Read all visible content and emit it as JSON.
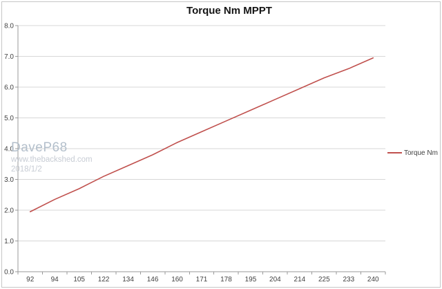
{
  "chart": {
    "title": "Torque Nm MPPT",
    "legend": {
      "label": "Torque Nm"
    },
    "watermark": {
      "line1": "DaveP68",
      "line2": "www.thebackshed.com",
      "line3": "2018/1/2"
    },
    "colors": {
      "series_line": "#C0504D",
      "gridline": "#d7d7d7",
      "axis_line": "#9a9a9a",
      "tick_label": "#3f3f3f",
      "title_text": "#141414",
      "watermark_primary": "#b3bfcb",
      "watermark_secondary": "#c7ccd4",
      "chart_border": "#c6c6c6",
      "background": "#ffffff"
    }
  },
  "chart_data": {
    "type": "line",
    "title": "Torque Nm MPPT",
    "categories": [
      "92",
      "94",
      "105",
      "122",
      "134",
      "146",
      "160",
      "171",
      "178",
      "195",
      "204",
      "214",
      "225",
      "233",
      "240"
    ],
    "series": [
      {
        "name": "Torque Nm",
        "color": "#C0504D",
        "values": [
          1.95,
          2.35,
          2.7,
          3.1,
          3.45,
          3.8,
          4.2,
          4.55,
          4.9,
          5.25,
          5.6,
          5.95,
          6.3,
          6.6,
          6.95
        ]
      }
    ],
    "xlabel": "",
    "ylabel": "",
    "ylim": [
      0,
      8
    ],
    "ytick_step": 1,
    "y_tick_labels": [
      "0.0",
      "1.0",
      "2.0",
      "3.0",
      "4.0",
      "5.0",
      "6.0",
      "7.0",
      "8.0"
    ],
    "grid": true,
    "legend_position": "right"
  }
}
